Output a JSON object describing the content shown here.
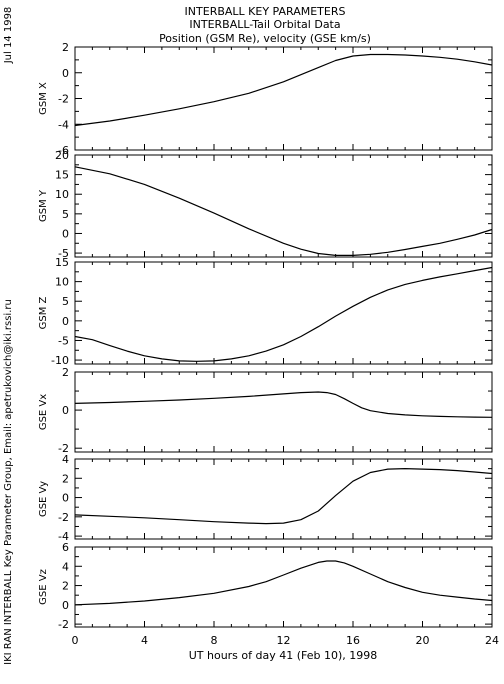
{
  "header": {
    "title_lines": [
      "INTERBALL KEY PARAMETERS",
      "INTERBALL-Tail Orbital Data",
      "Position (GSM Re), velocity (GSE km/s)"
    ],
    "date_label": "Jul 14 1998",
    "credit": "IKI RAN INTERBALL Key Parameter Group, Email: apetrukovich@iki.rssi.ru"
  },
  "x_axis": {
    "label": "UT hours of day  41 (Feb 10), 1998",
    "range": [
      0,
      24
    ],
    "ticks": [
      0,
      4,
      8,
      12,
      16,
      20,
      24
    ]
  },
  "chart_data": [
    {
      "type": "line",
      "ylabel": "GSM X",
      "xlim": [
        0,
        24
      ],
      "ylim": [
        -6,
        2
      ],
      "yticks": [
        2,
        0,
        -2,
        -4,
        -6
      ],
      "x": [
        0,
        2,
        4,
        6,
        8,
        10,
        12,
        13,
        14,
        15,
        16,
        17,
        18,
        19,
        20,
        21,
        22,
        23,
        24
      ],
      "y": [
        -4.1,
        -3.75,
        -3.3,
        -2.8,
        -2.25,
        -1.6,
        -0.7,
        -0.15,
        0.4,
        0.95,
        1.3,
        1.42,
        1.42,
        1.38,
        1.3,
        1.2,
        1.05,
        0.85,
        0.6
      ]
    },
    {
      "type": "line",
      "ylabel": "GSM Y",
      "xlim": [
        0,
        24
      ],
      "ylim": [
        -6,
        20
      ],
      "yticks": [
        20,
        15,
        10,
        5,
        0,
        -5
      ],
      "x": [
        0,
        2,
        4,
        6,
        8,
        10,
        12,
        13,
        14,
        15,
        16,
        17,
        18,
        19,
        20,
        21,
        22,
        23,
        24
      ],
      "y": [
        17,
        15.2,
        12.5,
        9,
        5.2,
        1.2,
        -2.5,
        -4,
        -5.1,
        -5.6,
        -5.6,
        -5.3,
        -4.8,
        -4.1,
        -3.3,
        -2.5,
        -1.5,
        -0.4,
        1
      ]
    },
    {
      "type": "line",
      "ylabel": "GSM Z",
      "xlim": [
        0,
        24
      ],
      "ylim": [
        -11,
        15
      ],
      "yticks": [
        15,
        10,
        5,
        0,
        -5,
        -10
      ],
      "x": [
        0,
        1,
        2,
        3,
        4,
        5,
        6,
        7,
        8,
        9,
        10,
        11,
        12,
        13,
        14,
        15,
        16,
        17,
        18,
        19,
        20,
        21,
        22,
        23,
        24
      ],
      "y": [
        -4,
        -4.8,
        -6.3,
        -7.7,
        -8.9,
        -9.7,
        -10.2,
        -10.3,
        -10.2,
        -9.7,
        -8.9,
        -7.7,
        -6.1,
        -4,
        -1.5,
        1.2,
        3.7,
        6,
        7.9,
        9.3,
        10.3,
        11.2,
        12,
        12.8,
        13.6
      ]
    },
    {
      "type": "line",
      "ylabel": "GSE Vx",
      "xlim": [
        0,
        24
      ],
      "ylim": [
        -2.2,
        2
      ],
      "yticks": [
        2,
        0,
        -2
      ],
      "x": [
        0,
        2,
        4,
        6,
        8,
        10,
        12,
        13,
        14,
        14.5,
        15,
        15.5,
        16,
        16.5,
        17,
        18,
        19,
        20,
        21,
        22,
        23,
        24
      ],
      "y": [
        0.35,
        0.4,
        0.46,
        0.53,
        0.62,
        0.72,
        0.85,
        0.92,
        0.95,
        0.92,
        0.82,
        0.6,
        0.35,
        0.12,
        -0.03,
        -0.18,
        -0.25,
        -0.3,
        -0.33,
        -0.35,
        -0.37,
        -0.38
      ]
    },
    {
      "type": "line",
      "ylabel": "GSE Vy",
      "xlim": [
        0,
        24
      ],
      "ylim": [
        -4.3,
        4
      ],
      "yticks": [
        4,
        2,
        0,
        -2,
        -4
      ],
      "x": [
        0,
        2,
        4,
        6,
        8,
        10,
        11,
        12,
        13,
        14,
        15,
        16,
        17,
        18,
        19,
        20,
        21,
        22,
        23,
        24
      ],
      "y": [
        -1.8,
        -1.95,
        -2.1,
        -2.3,
        -2.5,
        -2.65,
        -2.7,
        -2.65,
        -2.3,
        -1.4,
        0.2,
        1.7,
        2.6,
        2.95,
        3.0,
        2.95,
        2.9,
        2.8,
        2.65,
        2.5
      ]
    },
    {
      "type": "line",
      "ylabel": "GSE Vz",
      "xlim": [
        0,
        24
      ],
      "ylim": [
        -2.3,
        6
      ],
      "yticks": [
        6,
        4,
        2,
        0,
        -2
      ],
      "x": [
        0,
        2,
        4,
        6,
        8,
        10,
        11,
        12,
        13,
        14,
        14.5,
        15,
        15.5,
        16,
        17,
        18,
        19,
        20,
        21,
        22,
        23,
        24
      ],
      "y": [
        0,
        0.15,
        0.4,
        0.75,
        1.2,
        1.9,
        2.4,
        3.1,
        3.8,
        4.4,
        4.55,
        4.55,
        4.35,
        4.0,
        3.2,
        2.4,
        1.8,
        1.3,
        1.0,
        0.8,
        0.6,
        0.45
      ]
    }
  ]
}
